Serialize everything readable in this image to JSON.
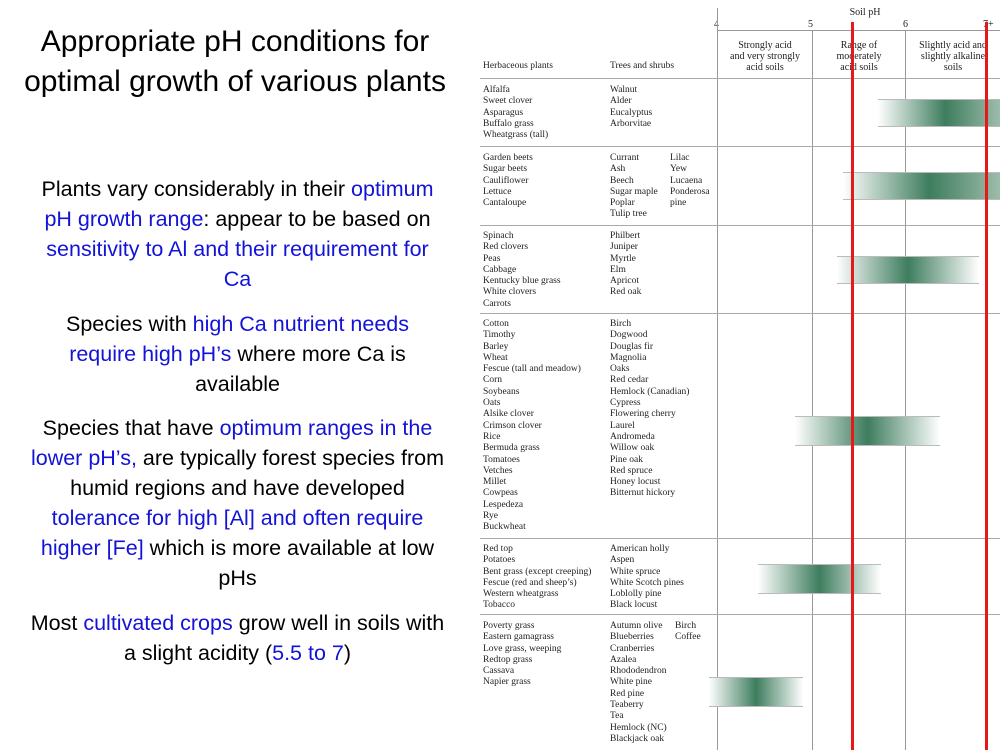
{
  "slide": {
    "title": "Appropriate pH conditions for optimal growth of various plants",
    "p1": {
      "a": "Plants vary considerably in their ",
      "b": "optimum pH growth range",
      "c": ": appear to be based on ",
      "d": "sensitivity to Al and their requirement for Ca"
    },
    "p2": {
      "a": "Species with ",
      "b": "high Ca nutrient needs require high pH’s",
      "c": " where more Ca is available"
    },
    "p3": {
      "a": "Species that have ",
      "b": "optimum ranges in the lower pH’s,",
      "c": " are typically forest species from humid regions and have developed ",
      "d": "tolerance for high [Al] and often require higher [Fe]",
      "e": " which is more available at low pHs"
    },
    "p4": {
      "a": "Most ",
      "b": "cultivated crops",
      "c": " grow well in soils with a slight acidity (",
      "d": "5.5 to 7",
      "e": ")"
    }
  },
  "figure": {
    "axis_title": "Soil pH",
    "ticks": [
      "4",
      "5",
      "6",
      "7+"
    ],
    "col_herb": "Herbaceous plants",
    "col_trees": "Trees and shrubs",
    "range_labels": [
      "Strongly acid\nand very strongly\nacid soils",
      "Range of\nmoderately\nacid soils",
      "Slightly acid and\nslightly alkaline\nsoils"
    ],
    "groups": [
      {
        "herb": "Alfalfa\nSweet clover\nAsparagus\nBuffalo grass\nWheatgrass (tall)",
        "trees": "Walnut\nAlder\nEucalyptus\nArborvitae",
        "trees2": ""
      },
      {
        "herb": "Garden beets\nSugar beets\nCauliflower\nLettuce\nCantaloupe",
        "trees": "Currant\nAsh\nBeech\nSugar maple\nPoplar\nTulip tree",
        "trees2": "Lilac\nYew\nLucaena\nPonderosa\npine"
      },
      {
        "herb": "Spinach\nRed clovers\nPeas\nCabbage\nKentucky blue grass\nWhite clovers\nCarrots",
        "trees": "Philbert\nJuniper\nMyrtle\nElm\nApricot\nRed oak",
        "trees2": ""
      },
      {
        "herb": "Cotton\nTimothy\nBarley\nWheat\nFescue (tall and meadow)\nCorn\nSoybeans\nOats\nAlsike clover\nCrimson clover\nRice\nBermuda grass\nTomatoes\nVetches\nMillet\nCowpeas\nLespedeza\nRye\nBuckwheat",
        "trees": "Birch\nDogwood\nDouglas fir\nMagnolia\nOaks\nRed cedar\nHemlock (Canadian)\nCypress\nFlowering cherry\nLaurel\nAndromeda\nWillow oak\nPine oak\nRed spruce\nHoney locust\nBitternut hickory",
        "trees2": ""
      },
      {
        "herb": "Red top\nPotatoes\nBent grass (except creeping)\nFescue (red and sheep’s)\nWestern wheatgrass\nTobacco",
        "trees": "American holly\nAspen\nWhite spruce\nWhite Scotch pines\nLoblolly pine\nBlack locust",
        "trees2": ""
      },
      {
        "herb": "Poverty grass\nEastern gamagrass\nLove grass, weeping\nRedtop grass\nCassava\nNapier grass",
        "trees": "Autumn olive\nBlueberries\nCranberries\nAzalea\nRhododendron\nWhite pine\nRed pine\nTeaberry\nTea\nHemlock (NC)\nBlackjack oak",
        "trees2": "Birch\nCoffee"
      }
    ]
  }
}
